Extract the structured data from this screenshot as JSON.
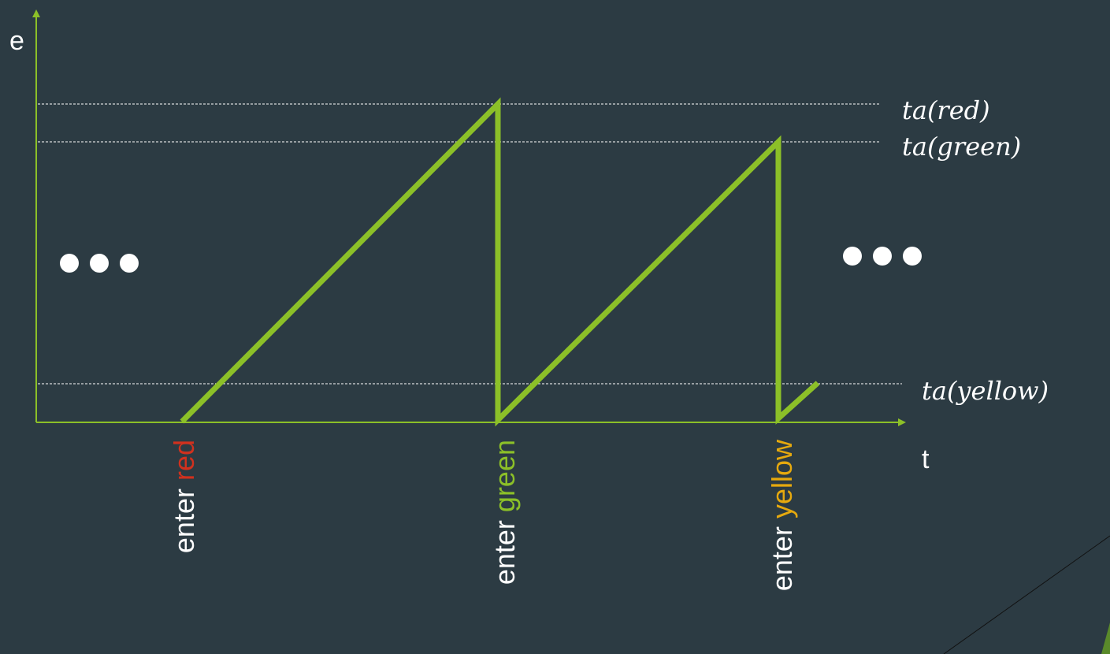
{
  "axes": {
    "y_label": "e",
    "x_label": "t"
  },
  "levels": {
    "red": "ta(red)",
    "green": "ta(green)",
    "yellow": "ta(yellow)"
  },
  "events": [
    {
      "prefix": "enter ",
      "state": "red",
      "color": "#d0311e"
    },
    {
      "prefix": "enter ",
      "state": "green",
      "color": "#8cc028"
    },
    {
      "prefix": "enter ",
      "state": "yellow",
      "color": "#e6a90e"
    }
  ],
  "colors": {
    "background": "#2c3b43",
    "curve": "#8cc028",
    "axis": "#8cc028",
    "guide": "#ffffff",
    "text": "#ffffff"
  },
  "ellipsis_icon": "ellipsis-icon"
}
